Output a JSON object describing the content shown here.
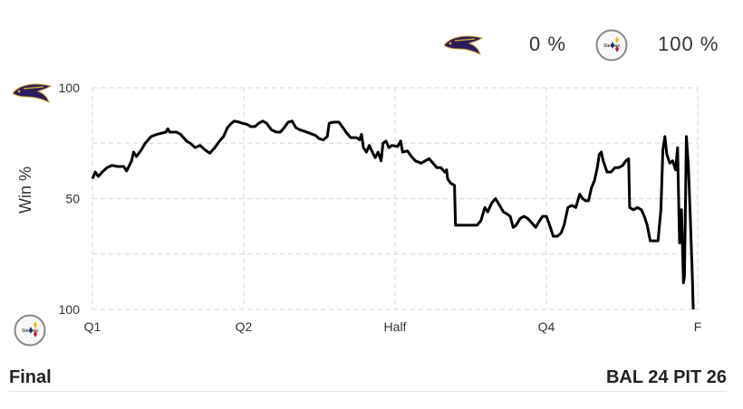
{
  "header": {
    "away_team": "Baltimore Ravens",
    "away_pct": "0 %",
    "home_team": "Pittsburgh Steelers",
    "home_pct": "100 %"
  },
  "footer": {
    "status": "Final",
    "score": "BAL 24 PIT 26"
  },
  "chart_data": {
    "type": "line",
    "title": "",
    "xlabel": "",
    "ylabel": "Win %",
    "x_ticks": [
      "Q1",
      "Q2",
      "Half",
      "Q4",
      "F"
    ],
    "y_ticks": [
      {
        "label": "100",
        "value": 100
      },
      {
        "label": "50",
        "value": 50
      },
      {
        "label": "100",
        "value": 0
      }
    ],
    "xlim": [
      0,
      60
    ],
    "ylim": [
      0,
      100
    ],
    "top_team": "BAL",
    "bottom_team": "PIT",
    "line_color": "#000000",
    "grid": true,
    "series": [
      {
        "name": "BAL win probability",
        "points": [
          [
            0.0,
            59
          ],
          [
            0.3,
            62
          ],
          [
            0.6,
            60
          ],
          [
            1.0,
            62
          ],
          [
            1.5,
            64
          ],
          [
            2.0,
            65
          ],
          [
            2.6,
            64.5
          ],
          [
            3.2,
            64.5
          ],
          [
            3.5,
            62.5
          ],
          [
            4.0,
            67
          ],
          [
            4.2,
            71
          ],
          [
            4.5,
            69
          ],
          [
            5.0,
            72
          ],
          [
            5.4,
            75
          ],
          [
            6.0,
            78
          ],
          [
            6.6,
            79
          ],
          [
            7.5,
            80
          ],
          [
            7.7,
            81.5
          ],
          [
            7.9,
            80
          ],
          [
            8.6,
            80
          ],
          [
            9.0,
            79
          ],
          [
            9.6,
            76
          ],
          [
            10.0,
            75
          ],
          [
            10.5,
            73
          ],
          [
            11.0,
            74
          ],
          [
            11.5,
            72
          ],
          [
            12.0,
            70.5
          ],
          [
            12.5,
            73
          ],
          [
            13.0,
            76
          ],
          [
            13.4,
            78
          ],
          [
            13.8,
            82
          ],
          [
            14.2,
            84
          ],
          [
            14.5,
            85
          ],
          [
            15.0,
            84.5
          ],
          [
            15.3,
            84
          ],
          [
            15.8,
            83.5
          ],
          [
            16.2,
            82.5
          ],
          [
            16.6,
            82.5
          ],
          [
            17.0,
            84
          ],
          [
            17.4,
            85
          ],
          [
            17.8,
            84
          ],
          [
            18.3,
            81
          ],
          [
            18.8,
            80
          ],
          [
            19.2,
            80
          ],
          [
            19.6,
            82
          ],
          [
            20.0,
            84.5
          ],
          [
            20.4,
            85
          ],
          [
            20.8,
            82
          ],
          [
            21.2,
            81
          ],
          [
            21.6,
            80.5
          ],
          [
            22.2,
            79.5
          ],
          [
            22.8,
            78.5
          ],
          [
            23.2,
            77
          ],
          [
            23.6,
            76.5
          ],
          [
            24.0,
            78
          ],
          [
            24.2,
            84
          ],
          [
            24.6,
            84.5
          ],
          [
            25.2,
            84.5
          ],
          [
            25.6,
            82
          ],
          [
            26.0,
            79.5
          ],
          [
            26.4,
            77.5
          ],
          [
            27.0,
            77.5
          ],
          [
            27.3,
            76.5
          ],
          [
            27.5,
            79
          ],
          [
            27.7,
            73
          ],
          [
            28.0,
            71
          ],
          [
            28.3,
            74
          ],
          [
            28.6,
            71
          ],
          [
            28.9,
            68.5
          ],
          [
            29.2,
            71
          ],
          [
            29.5,
            67
          ],
          [
            29.7,
            75
          ],
          [
            30.0,
            76
          ],
          [
            30.3,
            73
          ],
          [
            30.6,
            74
          ],
          [
            31.2,
            73.5
          ],
          [
            31.5,
            76
          ],
          [
            31.7,
            71
          ],
          [
            32.2,
            71.5
          ],
          [
            32.6,
            69
          ],
          [
            33.0,
            67
          ],
          [
            33.6,
            66
          ],
          [
            34.0,
            67
          ],
          [
            34.4,
            68
          ],
          [
            34.8,
            66
          ],
          [
            35.2,
            64
          ],
          [
            35.6,
            64
          ],
          [
            36.0,
            62
          ],
          [
            36.2,
            63
          ],
          [
            36.3,
            59
          ],
          [
            36.6,
            57
          ],
          [
            37.0,
            56
          ],
          [
            37.1,
            38
          ],
          [
            37.6,
            38
          ],
          [
            38.2,
            38
          ],
          [
            38.8,
            38
          ],
          [
            39.3,
            38
          ],
          [
            39.7,
            40
          ],
          [
            40.1,
            46
          ],
          [
            40.4,
            44
          ],
          [
            40.8,
            48
          ],
          [
            41.2,
            50
          ],
          [
            41.6,
            47
          ],
          [
            42.0,
            44
          ],
          [
            42.4,
            43
          ],
          [
            42.7,
            42
          ],
          [
            43.0,
            37
          ],
          [
            43.3,
            38
          ],
          [
            43.7,
            41
          ],
          [
            44.1,
            42
          ],
          [
            44.5,
            41
          ],
          [
            44.9,
            39
          ],
          [
            45.3,
            37
          ],
          [
            45.7,
            40
          ],
          [
            46.0,
            42
          ],
          [
            46.4,
            42
          ],
          [
            46.8,
            37
          ],
          [
            47.1,
            33
          ],
          [
            47.5,
            33
          ],
          [
            47.9,
            34.5
          ],
          [
            48.2,
            38
          ],
          [
            48.6,
            46
          ],
          [
            49.0,
            47
          ],
          [
            49.4,
            46
          ],
          [
            49.8,
            52
          ],
          [
            50.1,
            50
          ],
          [
            50.4,
            49
          ],
          [
            50.7,
            49
          ],
          [
            51.0,
            55
          ],
          [
            51.3,
            58
          ],
          [
            51.6,
            64
          ],
          [
            51.8,
            70
          ],
          [
            52.0,
            71
          ],
          [
            52.2,
            67
          ],
          [
            52.6,
            62
          ],
          [
            53.0,
            62
          ],
          [
            53.4,
            64
          ],
          [
            53.8,
            64
          ],
          [
            54.2,
            65
          ],
          [
            54.5,
            67
          ],
          [
            54.8,
            68
          ],
          [
            54.9,
            46
          ],
          [
            55.3,
            45
          ],
          [
            55.7,
            46
          ],
          [
            56.1,
            45
          ],
          [
            56.4,
            42
          ],
          [
            56.7,
            38
          ],
          [
            57.0,
            31
          ],
          [
            57.4,
            31
          ],
          [
            57.8,
            31
          ],
          [
            58.1,
            45
          ],
          [
            58.3,
            72
          ],
          [
            58.5,
            78
          ],
          [
            58.7,
            70
          ],
          [
            59.0,
            66
          ],
          [
            59.3,
            67
          ],
          [
            59.6,
            63
          ],
          [
            59.8,
            73
          ],
          [
            59.9,
            51
          ],
          [
            60.0,
            30
          ],
          [
            60.2,
            45
          ],
          [
            60.4,
            12
          ],
          [
            60.5,
            15
          ],
          [
            60.7,
            78
          ],
          [
            60.9,
            65
          ],
          [
            61.1,
            42
          ],
          [
            61.3,
            16
          ],
          [
            61.4,
            0
          ]
        ]
      }
    ]
  }
}
